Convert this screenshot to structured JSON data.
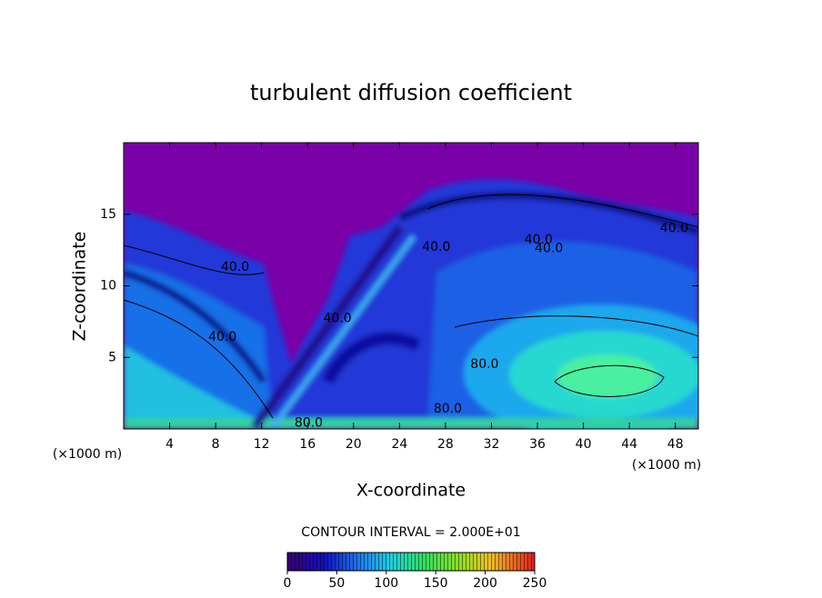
{
  "chart_data": {
    "type": "contour",
    "title": "turbulent diffusion coefficient",
    "x_label": "X-coordinate",
    "y_label": "Z-coordinate",
    "y_unit": "(×1000 m)",
    "x_unit": "(×1000 m)",
    "xlim": [
      0,
      50
    ],
    "ylim": [
      0,
      20
    ],
    "xticks": [
      4,
      8,
      12,
      16,
      20,
      24,
      28,
      32,
      36,
      40,
      44,
      48
    ],
    "yticks": [
      5,
      10,
      15
    ],
    "contour_interval_text": "CONTOUR INTERVAL = 2.000E+01",
    "colorbar": {
      "lim": [
        0,
        250
      ],
      "ticks": [
        0,
        50,
        100,
        150,
        200,
        250
      ]
    },
    "contour_labels": [
      {
        "value": 40,
        "label": "40.0",
        "x": 9.7,
        "z": 11.3
      },
      {
        "value": 40,
        "label": "40.0",
        "x": 8.6,
        "z": 6.4
      },
      {
        "value": 40,
        "label": "40.0",
        "x": 18.6,
        "z": 7.7
      },
      {
        "value": 40,
        "label": "40.0",
        "x": 27.2,
        "z": 12.7
      },
      {
        "value": 40,
        "label": "40.0",
        "x": 36.1,
        "z": 13.2
      },
      {
        "value": 40,
        "label": "40.0",
        "x": 37.0,
        "z": 12.6
      },
      {
        "value": 40,
        "label": "40.0",
        "x": 47.9,
        "z": 14.0
      },
      {
        "value": 80,
        "label": "80.0",
        "x": 31.4,
        "z": 4.5
      },
      {
        "value": 80,
        "label": "80.0",
        "x": 16.1,
        "z": 0.4
      },
      {
        "value": 80,
        "label": "80.0",
        "x": 28.2,
        "z": 1.4
      }
    ]
  }
}
